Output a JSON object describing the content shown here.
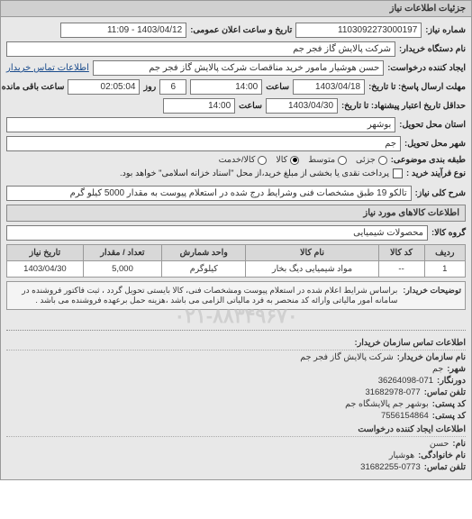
{
  "panel": {
    "title": "جزئیات اطلاعات نیاز"
  },
  "fields": {
    "request_no_label": "شماره نیاز:",
    "request_no": "1103092273000197",
    "announce_label": "تاریخ و ساعت اعلان عمومی:",
    "announce_value": "1403/04/12 - 11:09",
    "buyer_org_label": "نام دستگاه خریدار:",
    "buyer_org": "شرکت پالایش گاز فجر جم",
    "requester_label": "ایجاد کننده درخواست:",
    "requester": "حسن هوشیار مامور خرید مناقصات شرکت پالایش گاز فجر جم",
    "buyer_contact_link": "اطلاعات تماس خریدار",
    "deadline_label": "مهلت ارسال پاسخ: تا تاریخ:",
    "deadline_date": "1403/04/18",
    "deadline_time_label": "ساعت",
    "deadline_time": "14:00",
    "days_remaining": "6",
    "days_remaining_label": "روز",
    "time_remaining": "02:05:04",
    "time_remaining_label": "ساعت باقی مانده",
    "validity_label": "حداقل تاریخ اعتبار پیشنهاد: تا تاریخ:",
    "validity_date": "1403/04/30",
    "validity_time_label": "ساعت",
    "validity_time": "14:00",
    "delivery_province_label": "استان محل تحویل:",
    "delivery_province": "بوشهر",
    "delivery_city_label": "شهر محل تحویل:",
    "delivery_city": "جم",
    "priority_label": "طبقه بندی موضوعی:",
    "priority_options": {
      "urgent": "جزئی",
      "medium": "متوسط",
      "service": "کالا",
      "goods": "کالا/خدمت"
    },
    "selected_priority": "goods",
    "process_label": "نوع فرآیند خرید :",
    "checkbox_label": "پرداخت نقدی یا بخشی از مبلغ خرید،از محل \"اسناد خزانه اسلامی\" خواهد بود.",
    "summary_label": "شرح کلی نیاز:",
    "summary": "تالکو 19 طبق مشخصات فنی وشرایط درج شده در استعلام پیوست به مقدار 5000 کیلو گرم",
    "items_section": "اطلاعات کالاهای مورد نیاز",
    "group_label": "گروه کالا:",
    "group": "محصولات شیمیایی"
  },
  "table": {
    "columns": [
      "ردیف",
      "کد کالا",
      "نام کالا",
      "واحد شمارش",
      "تعداد / مقدار",
      "تاریخ نیاز"
    ],
    "rows": [
      [
        "1",
        "--",
        "مواد شیمیایی دیگ بخار",
        "کیلوگرم",
        "5,000",
        "1403/04/30"
      ]
    ]
  },
  "note": {
    "label": "توضیحات خریدار:",
    "text": "براساس شرایط اعلام شده در استعلام پیوست ومشخصات فنی، کالا بایستی تحویل گردد ، ثبت فاکتور فروشنده در سامانه امور مالیاتی وارائه کد منحصر به فرد مالیاتی الزامی می باشد ،هزینه حمل برعهده فروشنده می باشد ."
  },
  "watermark": "۰۲۱-۸۸۳۴۹۶۷۰",
  "contact": {
    "section1_title": "اطلاعات تماس سازمان خریدار:",
    "org_label": "نام سازمان خریدار:",
    "org": "شرکت پالایش گاز فجر جم",
    "city_label": "شهر:",
    "city": "جم",
    "fax_label": "دورنگار:",
    "fax": "36264098-071",
    "phone_label": "تلفن تماس:",
    "phone": "31682978-077",
    "postal_label": "کد پستی:",
    "postal_area": "بوشهر جم پالایشگاه جم",
    "postal_code_label": "کد پستی:",
    "postal_code": "7556154864",
    "section2_title": "اطلاعات ایجاد کننده درخواست",
    "name_label": "نام:",
    "name": "حسن",
    "surname_label": "نام خانوادگی:",
    "surname": "هوشیار",
    "contact_phone_label": "تلفن تماس:",
    "contact_phone": "31682255-0773"
  }
}
